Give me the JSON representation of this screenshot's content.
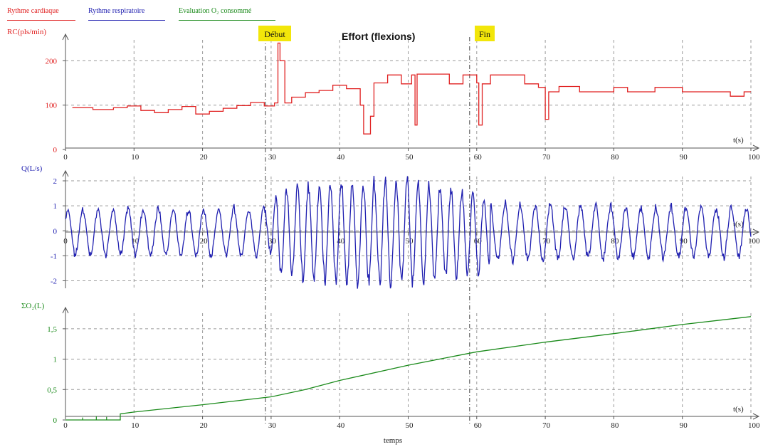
{
  "colors": {
    "heart": "#e02020",
    "resp": "#2020b0",
    "oxygen": "#1a8a1a",
    "grid": "#9a9a9a",
    "axis": "#555555",
    "marker_bg": "#f2e60a"
  },
  "legend": [
    {
      "label": "Rythme cardiaque",
      "color": "#e02020"
    },
    {
      "label": "Rythme respiratoire",
      "color": "#2020b0"
    },
    {
      "label": "Evaluation O₂ consommé",
      "color": "#1a8a1a"
    }
  ],
  "title": "Effort (flexions)",
  "markers": [
    {
      "label": "Début",
      "x": 30.5
    },
    {
      "label": "Fin",
      "x": 60.5
    }
  ],
  "xlabel_bottom": "temps",
  "chart_data": [
    {
      "type": "line",
      "name": "heart",
      "ylabel": "RC(pls/min)",
      "xlabel": "t(s)",
      "xlim": [
        0,
        100
      ],
      "ylim": [
        0,
        260
      ],
      "yticks": [
        0,
        100,
        200
      ],
      "ytick_labels": [
        "0",
        "100",
        "200"
      ],
      "xticks": [
        0,
        10,
        20,
        30,
        40,
        50,
        60,
        70,
        80,
        90,
        100
      ],
      "points": [
        [
          1,
          94
        ],
        [
          4,
          94
        ],
        [
          4,
          90
        ],
        [
          7,
          90
        ],
        [
          7,
          94
        ],
        [
          9,
          94
        ],
        [
          9,
          98
        ],
        [
          11,
          98
        ],
        [
          11,
          88
        ],
        [
          13,
          88
        ],
        [
          13,
          83
        ],
        [
          15,
          83
        ],
        [
          15,
          90
        ],
        [
          17,
          90
        ],
        [
          17,
          97
        ],
        [
          19,
          97
        ],
        [
          19,
          80
        ],
        [
          21,
          80
        ],
        [
          21,
          86
        ],
        [
          23,
          86
        ],
        [
          23,
          93
        ],
        [
          25,
          93
        ],
        [
          25,
          99
        ],
        [
          27,
          99
        ],
        [
          27,
          106
        ],
        [
          29,
          106
        ],
        [
          29,
          98
        ],
        [
          30.5,
          98
        ],
        [
          30.5,
          105
        ],
        [
          31,
          105
        ],
        [
          31,
          240
        ],
        [
          31.3,
          240
        ],
        [
          31.3,
          200
        ],
        [
          32,
          200
        ],
        [
          32,
          105
        ],
        [
          33,
          105
        ],
        [
          33,
          118
        ],
        [
          35,
          118
        ],
        [
          35,
          128
        ],
        [
          37,
          128
        ],
        [
          37,
          133
        ],
        [
          39,
          133
        ],
        [
          39,
          145
        ],
        [
          41,
          145
        ],
        [
          41,
          137
        ],
        [
          43,
          137
        ],
        [
          43,
          100
        ],
        [
          43.5,
          100
        ],
        [
          43.5,
          35
        ],
        [
          44.5,
          35
        ],
        [
          44.5,
          75
        ],
        [
          45,
          75
        ],
        [
          45,
          150
        ],
        [
          47,
          150
        ],
        [
          47,
          168
        ],
        [
          49,
          168
        ],
        [
          49,
          148
        ],
        [
          50.5,
          148
        ],
        [
          50.5,
          168
        ],
        [
          51,
          168
        ],
        [
          51,
          55
        ],
        [
          51.3,
          55
        ],
        [
          51.3,
          170
        ],
        [
          56,
          170
        ],
        [
          56,
          148
        ],
        [
          58,
          148
        ],
        [
          58,
          168
        ],
        [
          60,
          168
        ],
        [
          60,
          150
        ],
        [
          60.3,
          150
        ],
        [
          60.3,
          55
        ],
        [
          60.8,
          55
        ],
        [
          60.8,
          148
        ],
        [
          62,
          148
        ],
        [
          62,
          168
        ],
        [
          67,
          168
        ],
        [
          67,
          148
        ],
        [
          69,
          148
        ],
        [
          69,
          140
        ],
        [
          70,
          140
        ],
        [
          70,
          68
        ],
        [
          70.5,
          68
        ],
        [
          70.5,
          130
        ],
        [
          72,
          130
        ],
        [
          72,
          142
        ],
        [
          75,
          142
        ],
        [
          75,
          130
        ],
        [
          80,
          130
        ],
        [
          80,
          140
        ],
        [
          82,
          140
        ],
        [
          82,
          130
        ],
        [
          86,
          130
        ],
        [
          86,
          140
        ],
        [
          90,
          140
        ],
        [
          90,
          130
        ],
        [
          97,
          130
        ],
        [
          97,
          120
        ],
        [
          99,
          120
        ],
        [
          99,
          130
        ],
        [
          100,
          130
        ]
      ]
    },
    {
      "type": "line",
      "name": "resp",
      "ylabel": "Q(L/s)",
      "xlabel": "t(s)",
      "xlim": [
        0,
        100
      ],
      "ylim": [
        -2.3,
        2.4
      ],
      "yticks": [
        -2,
        -1,
        0,
        1,
        2
      ],
      "ytick_labels": [
        "-2",
        "-1",
        "0",
        "1",
        "2"
      ],
      "xticks": [
        0,
        10,
        20,
        30,
        40,
        50,
        60,
        70,
        80,
        90,
        100
      ],
      "period_s": 2.2,
      "amplitude_envelope": [
        [
          0,
          0.9
        ],
        [
          30,
          0.95
        ],
        [
          31,
          1.7
        ],
        [
          40,
          2.0
        ],
        [
          50,
          2.0
        ],
        [
          60,
          1.6
        ],
        [
          62,
          1.1
        ],
        [
          100,
          0.95
        ]
      ]
    },
    {
      "type": "line",
      "name": "oxygen",
      "ylabel": "ΣO₂(L)",
      "xlabel": "t(s)",
      "xlim": [
        0,
        100
      ],
      "ylim": [
        0,
        1.85
      ],
      "yticks": [
        0,
        0.5,
        1,
        1.5
      ],
      "ytick_labels": [
        "0",
        "0,5",
        "1",
        "1,5"
      ],
      "xticks": [
        0,
        10,
        20,
        30,
        40,
        50,
        60,
        70,
        80,
        90,
        100
      ],
      "points": [
        [
          0,
          0
        ],
        [
          8,
          0
        ],
        [
          8,
          0.1
        ],
        [
          10,
          0.13
        ],
        [
          20,
          0.25
        ],
        [
          30,
          0.38
        ],
        [
          35,
          0.5
        ],
        [
          40,
          0.65
        ],
        [
          50,
          0.9
        ],
        [
          60,
          1.12
        ],
        [
          70,
          1.28
        ],
        [
          80,
          1.42
        ],
        [
          90,
          1.57
        ],
        [
          100,
          1.7
        ]
      ]
    }
  ]
}
